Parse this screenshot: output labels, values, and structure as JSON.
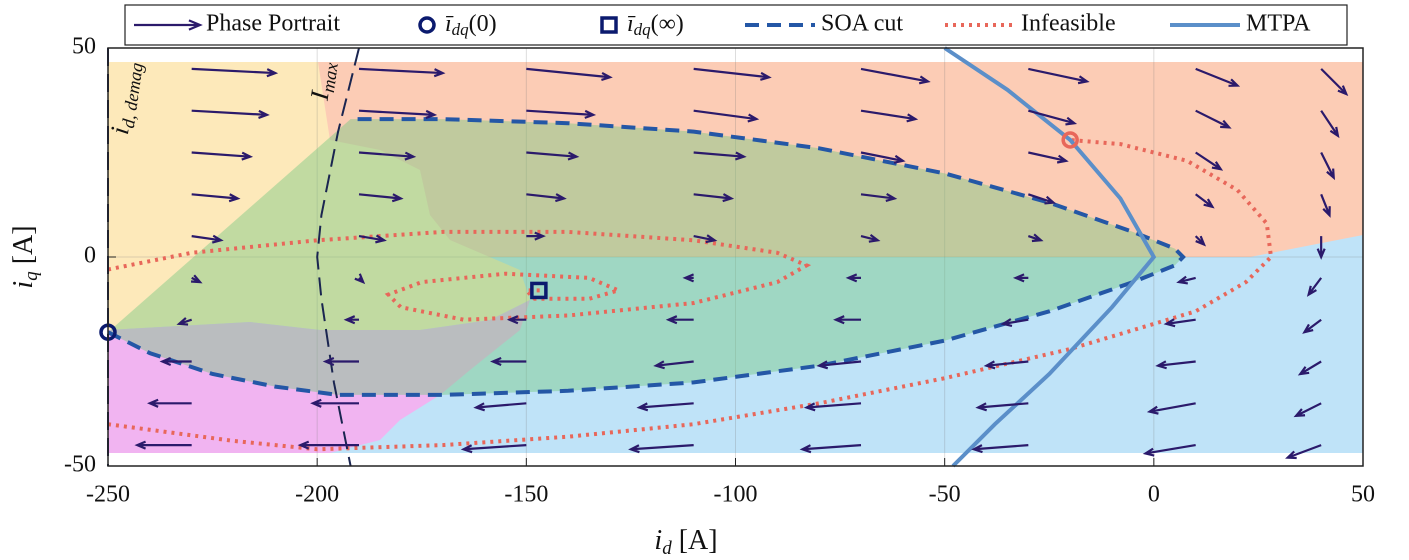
{
  "chart_data": {
    "type": "quiver",
    "xlabel": [
      "i",
      "d",
      " [A]"
    ],
    "ylabel": [
      "i",
      "q",
      " [A]"
    ],
    "xlim": [
      -250,
      50
    ],
    "ylim": [
      -50,
      50
    ],
    "xticks": [
      -250,
      -200,
      -150,
      -100,
      -50,
      0,
      50
    ],
    "yticks": [
      -50,
      0,
      50
    ],
    "grid": true,
    "legend": "top",
    "series": [
      {
        "name": "Phase Portrait",
        "type": "quiver",
        "color": "#2b1a6b",
        "x": [
          -230,
          -190,
          -150,
          -110,
          -70,
          -30,
          10,
          40,
          -230,
          -190,
          -150,
          -110,
          -70,
          -30,
          10,
          40,
          -230,
          -190,
          -150,
          -110,
          -70,
          -30,
          10,
          40,
          -230,
          -190,
          -150,
          -110,
          -70,
          -30,
          10,
          40,
          -230,
          -190,
          -150,
          -110,
          -70,
          -30,
          10,
          40,
          -230,
          -190,
          -150,
          -110,
          -70,
          -30,
          10,
          40,
          -230,
          -190,
          -150,
          -110,
          -70,
          -30,
          10,
          40,
          -230,
          -190,
          -150,
          -110,
          -70,
          -30,
          10,
          40,
          -230,
          -190,
          -150,
          -110,
          -70,
          -30,
          10,
          40,
          -230,
          -190,
          -150,
          -110,
          -70,
          -30,
          10,
          40
        ],
        "y": [
          45,
          45,
          45,
          45,
          45,
          45,
          45,
          45,
          35,
          35,
          35,
          35,
          35,
          35,
          35,
          35,
          25,
          25,
          25,
          25,
          25,
          25,
          25,
          25,
          15,
          15,
          15,
          15,
          15,
          15,
          15,
          15,
          5,
          5,
          5,
          5,
          5,
          5,
          5,
          5,
          -5,
          -5,
          -5,
          -5,
          -5,
          -5,
          -5,
          -5,
          -15,
          -15,
          -15,
          -15,
          -15,
          -15,
          -15,
          -15,
          -25,
          -25,
          -25,
          -25,
          -25,
          -25,
          -25,
          -25,
          -35,
          -35,
          -35,
          -35,
          -35,
          -35,
          -35,
          -35,
          -45,
          -45,
          -45,
          -45,
          -45,
          -45,
          -45,
          -45
        ],
        "u": [
          20,
          20,
          20,
          18,
          16,
          14,
          10,
          6,
          18,
          18,
          16,
          15,
          13,
          11,
          8,
          4,
          14,
          13,
          12,
          12,
          10,
          9,
          6,
          3,
          11,
          10,
          9,
          9,
          8,
          6,
          4,
          2,
          7,
          6,
          4,
          5,
          4,
          3,
          2,
          0,
          2,
          1,
          0,
          -2,
          -3,
          -3,
          -4,
          -3,
          -3,
          -3,
          -4,
          -6,
          -6,
          -6,
          -7,
          -4,
          -7,
          -8,
          -8,
          -9,
          -10,
          -10,
          -9,
          -5,
          -10,
          -11,
          -12,
          -13,
          -13,
          -12,
          -11,
          -6,
          -13,
          -14,
          -15,
          -15,
          -14,
          -13,
          -12,
          -8
        ],
        "v": [
          -1,
          -1,
          -2,
          -2,
          -3,
          -3,
          -4,
          -6,
          -1,
          -1,
          -1,
          -2,
          -2,
          -3,
          -4,
          -6,
          -1,
          -1,
          -1,
          -1,
          -2,
          -2,
          -4,
          -6,
          -1,
          -1,
          -1,
          -1,
          -1,
          -2,
          -3,
          -5,
          -1,
          -1,
          0,
          -1,
          -1,
          -1,
          -2,
          -5,
          -1,
          -1,
          0,
          0,
          0,
          0,
          -1,
          -4,
          -1,
          0,
          0,
          0,
          0,
          -1,
          -1,
          -3,
          0,
          0,
          0,
          -1,
          -1,
          -1,
          -1,
          -3,
          0,
          0,
          -1,
          -1,
          -1,
          -1,
          -2,
          -3,
          0,
          0,
          -1,
          -1,
          -1,
          -1,
          -2,
          -3
        ]
      },
      {
        "name": [
          "ī",
          "dq",
          "(0)"
        ],
        "type": "marker",
        "marker": "circle",
        "color": "#0b1a6e",
        "x": [
          -250
        ],
        "y": [
          -18
        ]
      },
      {
        "name": [
          "ī",
          "dq",
          "(∞)"
        ],
        "type": "marker",
        "marker": "square",
        "color": "#0b1a6e",
        "x": [
          -147
        ],
        "y": [
          -8
        ]
      },
      {
        "name": "SOA cut",
        "type": "line",
        "dash": "dashed",
        "color": "#2457a6",
        "fill": "rgba(120,200,130,0.45)",
        "x": [
          -250,
          -240,
          -225,
          -210,
          -195,
          -170,
          -140,
          -110,
          -80,
          -50,
          -25,
          -5,
          5,
          7,
          5,
          -5,
          -25,
          -50,
          -80,
          -110,
          -140,
          -170,
          -192
        ],
        "y": [
          -18,
          -23,
          -28,
          -31,
          -33,
          -33,
          -32,
          -30,
          -26,
          -20,
          -13,
          -6,
          -2,
          0,
          2,
          6,
          13,
          20,
          26,
          30,
          32,
          33,
          33
        ]
      },
      {
        "name": "Infeasible",
        "type": "line",
        "dash": "dotted",
        "color": "#e8675a",
        "x": [
          -250,
          -230,
          -200,
          -170,
          -140,
          -110,
          -90,
          -83,
          -90,
          -110,
          -140,
          -165,
          -180,
          -183,
          -175,
          -155,
          -135,
          -128,
          -135,
          -148,
          -150,
          -146,
          null,
          -250,
          -220,
          -200,
          -170,
          -140,
          -110,
          -80,
          -50,
          -20,
          10,
          22,
          28,
          27,
          20,
          8,
          -8,
          -20
        ],
        "y": [
          -3,
          1,
          4,
          6,
          6,
          4,
          1,
          -2,
          -6,
          -11,
          -14,
          -15,
          -12,
          -9,
          -6,
          -4,
          -5,
          -8,
          -10,
          -10,
          -8,
          -8,
          null,
          -40,
          -44,
          -46,
          -45,
          -43,
          -40,
          -35,
          -29,
          -22,
          -13,
          -6,
          0,
          8,
          16,
          23,
          27,
          28
        ]
      },
      {
        "name": "MTPA",
        "type": "line",
        "dash": "solid",
        "color": "#5b8fc9",
        "x": [
          -50,
          -35,
          -20,
          -8,
          0,
          -10,
          -25,
          -38,
          -48
        ],
        "y": [
          50,
          40,
          28,
          14,
          0,
          -12,
          -28,
          -40,
          -50
        ]
      },
      {
        "type": "marker",
        "marker": "circle",
        "color": "#e8675a",
        "x": [
          -20
        ],
        "y": [
          28
        ]
      },
      {
        "type": "line",
        "dash": "longdash",
        "color": "#1a2550",
        "label": [
          "I",
          "max"
        ],
        "x": [
          -190,
          -195,
          -199,
          -200,
          -199,
          -196,
          -192
        ],
        "y": [
          50,
          30,
          10,
          0,
          -10,
          -30,
          -50
        ]
      },
      {
        "type": "line",
        "dash": "longdash",
        "color": "#1a2550",
        "label": [
          "i",
          "d, demag"
        ],
        "x": [
          -250,
          -250
        ],
        "y": [
          50,
          -50
        ]
      }
    ]
  }
}
